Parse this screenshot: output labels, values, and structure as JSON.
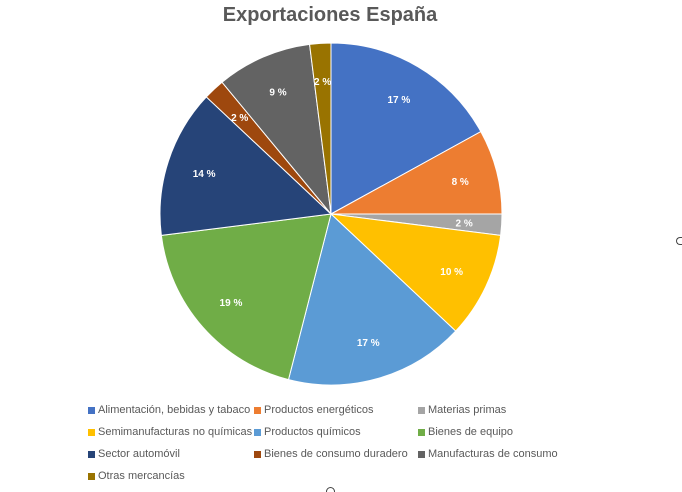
{
  "chart_data": {
    "type": "pie",
    "title": "Exportaciones España",
    "categories": [
      "Alimentación, bebidas y tabaco",
      "Productos energéticos",
      "Materias primas",
      "Semimanufacturas no químicas",
      "Productos químicos",
      "Bienes de equipo",
      "Sector automóvil",
      "Bienes de consumo duradero",
      "Manufacturas de consumo",
      "Otras mercancías"
    ],
    "values": [
      17,
      8,
      2,
      10,
      17,
      19,
      14,
      2,
      9,
      2
    ],
    "labels": [
      "17 %",
      "8 %",
      "2 %",
      "10 %",
      "17 %",
      "19 %",
      "14 %",
      "2 %",
      "9 %",
      "2 %"
    ],
    "colors": [
      "#4472C4",
      "#ED7D31",
      "#A5A5A5",
      "#FFC000",
      "#5B9BD5",
      "#70AD47",
      "#264478",
      "#9E480E",
      "#636363",
      "#997300"
    ],
    "legend_position": "bottom",
    "unit": "%"
  }
}
